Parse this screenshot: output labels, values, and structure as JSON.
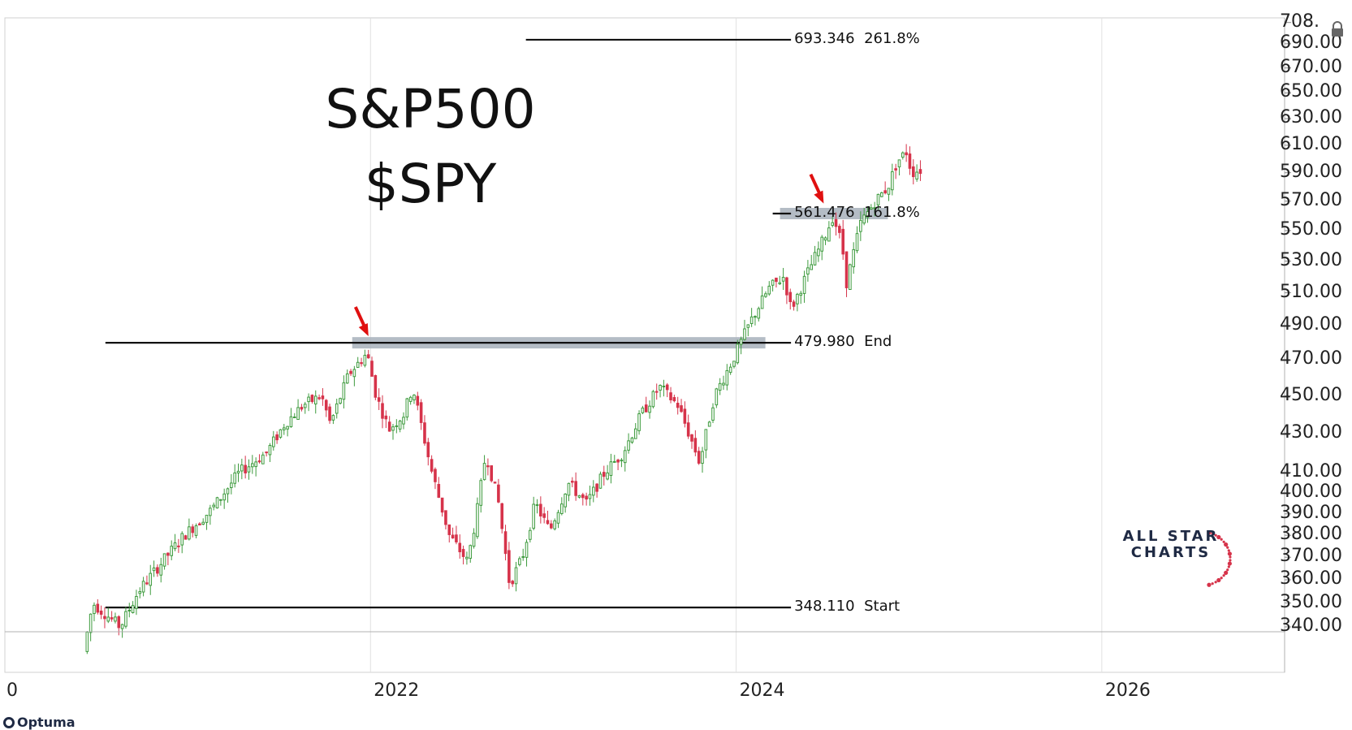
{
  "chart_data": {
    "type": "candlestick",
    "title_lines": [
      "S&P500",
      "$SPY"
    ],
    "y_scale": "log",
    "ylim": [
      338,
      712
    ],
    "y_ticks": [
      "708.",
      "690.00",
      "670.00",
      "650.00",
      "630.00",
      "610.00",
      "590.00",
      "570.00",
      "550.00",
      "530.00",
      "510.00",
      "490.00",
      "470.00",
      "450.00",
      "430.00",
      "410.00",
      "400.00",
      "390.00",
      "380.00",
      "370.00",
      "360.00",
      "350.00",
      "340.00"
    ],
    "x_ticks": [
      {
        "label": "0",
        "year": 2020.0
      },
      {
        "label": "2022",
        "year": 2022.0
      },
      {
        "label": "2024",
        "year": 2024.0
      },
      {
        "label": "2026",
        "year": 2026.0
      }
    ],
    "xlim": [
      2020.0,
      2027.0
    ],
    "price_path": [
      {
        "t": 2020.45,
        "p": 330
      },
      {
        "t": 2020.5,
        "p": 350
      },
      {
        "t": 2020.65,
        "p": 340
      },
      {
        "t": 2020.75,
        "p": 355
      },
      {
        "t": 2020.9,
        "p": 370
      },
      {
        "t": 2021.0,
        "p": 380
      },
      {
        "t": 2021.15,
        "p": 392
      },
      {
        "t": 2021.3,
        "p": 410
      },
      {
        "t": 2021.45,
        "p": 420
      },
      {
        "t": 2021.55,
        "p": 435
      },
      {
        "t": 2021.65,
        "p": 445
      },
      {
        "t": 2021.75,
        "p": 450
      },
      {
        "t": 2021.8,
        "p": 435
      },
      {
        "t": 2021.9,
        "p": 462
      },
      {
        "t": 2022.0,
        "p": 474
      },
      {
        "t": 2022.05,
        "p": 450
      },
      {
        "t": 2022.12,
        "p": 432
      },
      {
        "t": 2022.2,
        "p": 440
      },
      {
        "t": 2022.25,
        "p": 455
      },
      {
        "t": 2022.35,
        "p": 412
      },
      {
        "t": 2022.45,
        "p": 380
      },
      {
        "t": 2022.55,
        "p": 368
      },
      {
        "t": 2022.6,
        "p": 390
      },
      {
        "t": 2022.65,
        "p": 420
      },
      {
        "t": 2022.72,
        "p": 395
      },
      {
        "t": 2022.78,
        "p": 358
      },
      {
        "t": 2022.85,
        "p": 370
      },
      {
        "t": 2022.92,
        "p": 395
      },
      {
        "t": 2023.0,
        "p": 382
      },
      {
        "t": 2023.1,
        "p": 405
      },
      {
        "t": 2023.2,
        "p": 395
      },
      {
        "t": 2023.3,
        "p": 410
      },
      {
        "t": 2023.4,
        "p": 420
      },
      {
        "t": 2023.5,
        "p": 440
      },
      {
        "t": 2023.6,
        "p": 455
      },
      {
        "t": 2023.7,
        "p": 445
      },
      {
        "t": 2023.78,
        "p": 425
      },
      {
        "t": 2023.82,
        "p": 415
      },
      {
        "t": 2023.9,
        "p": 450
      },
      {
        "t": 2024.0,
        "p": 470
      },
      {
        "t": 2024.1,
        "p": 493
      },
      {
        "t": 2024.2,
        "p": 513
      },
      {
        "t": 2024.28,
        "p": 520
      },
      {
        "t": 2024.32,
        "p": 500
      },
      {
        "t": 2024.42,
        "p": 525
      },
      {
        "t": 2024.5,
        "p": 545
      },
      {
        "t": 2024.55,
        "p": 560
      },
      {
        "t": 2024.6,
        "p": 540
      },
      {
        "t": 2024.62,
        "p": 515
      },
      {
        "t": 2024.7,
        "p": 555
      },
      {
        "t": 2024.78,
        "p": 570
      },
      {
        "t": 2024.85,
        "p": 580
      },
      {
        "t": 2024.9,
        "p": 598
      },
      {
        "t": 2024.95,
        "p": 605
      },
      {
        "t": 2024.98,
        "p": 590
      },
      {
        "t": 2025.02,
        "p": 592
      }
    ],
    "up_color": "#3e9b3e",
    "down_color": "#d6334a",
    "fib_levels": [
      {
        "value": 693.346,
        "value_label": "693.346",
        "ratio_label": "261.8%",
        "t_start": 2022.85,
        "t_end": 2024.3
      },
      {
        "value": 561.476,
        "value_label": "561.476",
        "ratio_label": "161.8%",
        "t_start": 2024.2,
        "t_end": 2024.3
      },
      {
        "value": 479.98,
        "value_label": "479.980",
        "ratio_label": "End",
        "t_start": 2020.55,
        "t_end": 2024.3
      },
      {
        "value": 348.11,
        "value_label": "348.110",
        "ratio_label": "Start",
        "t_start": 2020.55,
        "t_end": 2024.3
      }
    ],
    "zones": [
      {
        "value": 479.98,
        "t_start": 2021.9,
        "t_end": 2024.16
      },
      {
        "value": 561.476,
        "t_start": 2024.24,
        "t_end": 2024.83
      }
    ],
    "arrows": [
      {
        "t": 2021.98,
        "p": 481,
        "color": "#e01010"
      },
      {
        "t": 2024.47,
        "p": 565,
        "color": "#e01010"
      }
    ]
  },
  "logo": {
    "line1": "ALL STAR",
    "line2": "CHARTS"
  },
  "footer": {
    "brand": "Optuma"
  }
}
